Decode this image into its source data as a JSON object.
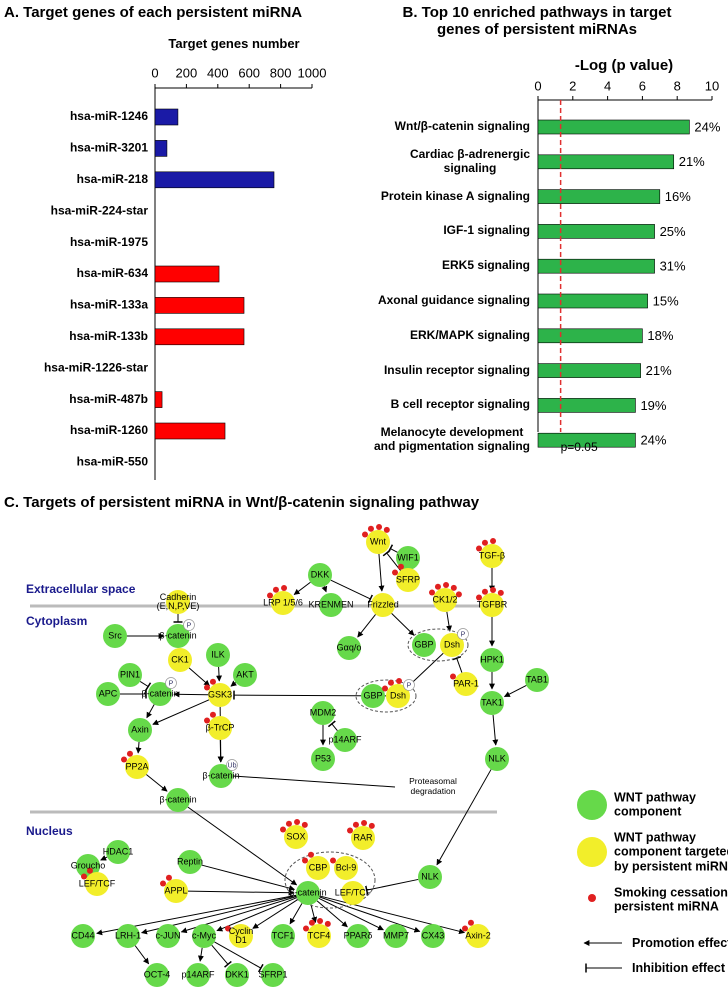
{
  "chart_data": [
    {
      "type": "bar",
      "orientation": "horizontal",
      "title": "A.  Target genes of each persistent miRNA",
      "x_label": "Target genes number",
      "categories": [
        "hsa-miR-1246",
        "hsa-miR-3201",
        "hsa-miR-218",
        "hsa-miR-224-star",
        "hsa-miR-1975",
        "hsa-miR-634",
        "hsa-miR-133a",
        "hsa-miR-133b",
        "hsa-miR-1226-star",
        "hsa-miR-487b",
        "hsa-miR-1260",
        "hsa-miR-550"
      ],
      "values": [
        146,
        76,
        758,
        0,
        0,
        408,
        567,
        567,
        0,
        45,
        446,
        0
      ],
      "colors": [
        "#1a1aa6",
        "#1a1aa6",
        "#1a1aa6",
        "#1a1aa6",
        "#1a1aa6",
        "#ff0000",
        "#ff0000",
        "#ff0000",
        "#ff0000",
        "#ff0000",
        "#ff0000",
        "#ff0000"
      ],
      "xlim": [
        0,
        1000
      ],
      "xticks": [
        0,
        200,
        400,
        600,
        800,
        1000
      ]
    },
    {
      "type": "bar",
      "orientation": "horizontal",
      "title": "B.  Top 10 enriched pathways in target\ngenes of persistent miRNAs",
      "x_label": "-Log (p value)",
      "categories": [
        "Wnt/β-catenin signaling",
        "Cardiac β-adrenergic\nsignaling",
        "Protein kinase A signaling",
        "IGF-1 signaling",
        "ERK5 signaling",
        "Axonal guidance signaling",
        "ERK/MAPK signaling",
        "Insulin receptor signaling",
        "B cell receptor signaling",
        "Melanocyte development\nand pigmentation signaling"
      ],
      "values": [
        8.7,
        7.8,
        7.0,
        6.7,
        6.7,
        6.3,
        6.0,
        5.9,
        5.6,
        5.6
      ],
      "percent_labels": [
        "24%",
        "21%",
        "16%",
        "25%",
        "31%",
        "15%",
        "18%",
        "21%",
        "19%",
        "24%"
      ],
      "color": "#2db34a",
      "reference_line": {
        "value": 1.3,
        "label": "p=0.05",
        "color": "#e03030"
      },
      "xlim": [
        0,
        10
      ],
      "xticks": [
        0,
        2,
        4,
        6,
        8,
        10
      ]
    }
  ],
  "diagram": {
    "title": "C.  Targets of persistent miRNA in Wnt/β-catenin signaling pathway",
    "regions": [
      "Extracellular space",
      "Cytoplasm",
      "Nucleus"
    ],
    "nodes": [
      {
        "label": "Wnt",
        "color": "#f2ee2a",
        "dots": 4
      },
      {
        "label": "WIF1",
        "color": "#66d94a",
        "dots": 0
      },
      {
        "label": "SFRP",
        "color": "#f2ee2a",
        "dots": 2
      },
      {
        "label": "DKK",
        "color": "#66d94a",
        "dots": 0
      },
      {
        "label": "LRP 1/5/6",
        "color": "#f2ee2a",
        "dots": 3
      },
      {
        "label": "KRENMEN",
        "color": "#66d94a",
        "dots": 0
      },
      {
        "label": "Frizzled",
        "color": "#f2ee2a",
        "dots": 0
      },
      {
        "label": "TGF-β",
        "color": "#f2ee2a",
        "dots": 3
      },
      {
        "label": "TGFBR",
        "color": "#f2ee2a",
        "dots": 4
      },
      {
        "label": "Cadherin\n(E,N,P,VE)",
        "color": "#f2ee2a",
        "dots": 0
      },
      {
        "label": "Src",
        "color": "#66d94a",
        "dots": 0
      },
      {
        "label": "β-catenin",
        "color": "#66d94a",
        "dots": 0,
        "tag": "P"
      },
      {
        "label": "PIN1",
        "color": "#66d94a",
        "dots": 0
      },
      {
        "label": "CK1",
        "color": "#f2ee2a",
        "dots": 0
      },
      {
        "label": "ILK",
        "color": "#66d94a",
        "dots": 0
      },
      {
        "label": "AKT",
        "color": "#66d94a",
        "dots": 0
      },
      {
        "label": "APC",
        "color": "#66d94a",
        "dots": 0
      },
      {
        "label": "β-catenin",
        "color": "#66d94a",
        "dots": 0,
        "tag": "P"
      },
      {
        "label": "GSK3",
        "color": "#f2ee2a",
        "dots": 2
      },
      {
        "label": "Axin",
        "color": "#66d94a",
        "dots": 0
      },
      {
        "label": "β-TrCP",
        "color": "#f2ee2a",
        "dots": 2
      },
      {
        "label": "PP2A",
        "color": "#f2ee2a",
        "dots": 2
      },
      {
        "label": "β-catenin",
        "color": "#66d94a",
        "dots": 0,
        "tag": "Ub"
      },
      {
        "label": "β-catenin",
        "color": "#66d94a",
        "dots": 0
      },
      {
        "label": "Gαq/o",
        "color": "#66d94a",
        "dots": 0
      },
      {
        "label": "GBP",
        "color": "#66d94a",
        "dots": 0
      },
      {
        "label": "Dsh",
        "color": "#f2ee2a",
        "dots": 0,
        "tag": "P"
      },
      {
        "label": "CK1/2",
        "color": "#f2ee2a",
        "dots": 5
      },
      {
        "label": "PAR-1",
        "color": "#f2ee2a",
        "dots": 1
      },
      {
        "label": "GBP",
        "color": "#66d94a",
        "dots": 0
      },
      {
        "label": "Dsh",
        "color": "#f2ee2a",
        "dots": 3,
        "tag": "P"
      },
      {
        "label": "MDM2",
        "color": "#66d94a",
        "dots": 0
      },
      {
        "label": "p14ARF",
        "color": "#66d94a",
        "dots": 0
      },
      {
        "label": "P53",
        "color": "#66d94a",
        "dots": 0
      },
      {
        "label": "HPK1",
        "color": "#66d94a",
        "dots": 0
      },
      {
        "label": "TAB1",
        "color": "#66d94a",
        "dots": 0
      },
      {
        "label": "TAK1",
        "color": "#66d94a",
        "dots": 0
      },
      {
        "label": "NLK",
        "color": "#66d94a",
        "dots": 0
      },
      {
        "label": "HDAC1",
        "color": "#66d94a",
        "dots": 0
      },
      {
        "label": "Groucho",
        "color": "#66d94a",
        "dots": 0
      },
      {
        "label": "LEF/TCF",
        "color": "#f2ee2a",
        "dots": 2
      },
      {
        "label": "Reptin",
        "color": "#66d94a",
        "dots": 0
      },
      {
        "label": "APPL",
        "color": "#f2ee2a",
        "dots": 2
      },
      {
        "label": "SOX",
        "color": "#f2ee2a",
        "dots": 4
      },
      {
        "label": "RAR",
        "color": "#f2ee2a",
        "dots": 4
      },
      {
        "label": "CBP",
        "color": "#f2ee2a",
        "dots": 2
      },
      {
        "label": "Bcl-9",
        "color": "#f2ee2a",
        "dots": 1
      },
      {
        "label": "β-catenin",
        "color": "#66d94a",
        "dots": 0
      },
      {
        "label": "LEF/TCF",
        "color": "#f2ee2a",
        "dots": 0
      },
      {
        "label": "NLK",
        "color": "#66d94a",
        "dots": 0
      },
      {
        "label": "CD44",
        "color": "#66d94a",
        "dots": 0
      },
      {
        "label": "LRH-1",
        "color": "#66d94a",
        "dots": 0
      },
      {
        "label": "c-JUN",
        "color": "#66d94a",
        "dots": 0
      },
      {
        "label": "c-Myc",
        "color": "#66d94a",
        "dots": 0
      },
      {
        "label": "Cyclin\nD1",
        "color": "#f2ee2a",
        "dots": 1
      },
      {
        "label": "TCF1",
        "color": "#66d94a",
        "dots": 0
      },
      {
        "label": "TCF4",
        "color": "#f2ee2a",
        "dots": 4
      },
      {
        "label": "PPARδ",
        "color": "#66d94a",
        "dots": 0
      },
      {
        "label": "MMP7",
        "color": "#66d94a",
        "dots": 0
      },
      {
        "label": "CX43",
        "color": "#66d94a",
        "dots": 0
      },
      {
        "label": "Axin-2",
        "color": "#f2ee2a",
        "dots": 2
      },
      {
        "label": "OCT-4",
        "color": "#66d94a",
        "dots": 0
      },
      {
        "label": "p14ARF",
        "color": "#66d94a",
        "dots": 0
      },
      {
        "label": "DKK1",
        "color": "#66d94a",
        "dots": 0
      },
      {
        "label": "SFRP1",
        "color": "#66d94a",
        "dots": 0
      }
    ],
    "notes": [
      "Proteasomal\ndegradation"
    ],
    "legend": [
      {
        "label": "WNT pathway\ncomponent",
        "color": "#66d94a"
      },
      {
        "label": "WNT pathway\ncomponent targeted\nby persistent miRNA",
        "color": "#f2ee2a"
      },
      {
        "label": "Smoking cessation\npersistent miRNA",
        "color": "#e02020"
      },
      {
        "label": "Promotion effect"
      },
      {
        "label": "Inhibition effect"
      }
    ]
  }
}
